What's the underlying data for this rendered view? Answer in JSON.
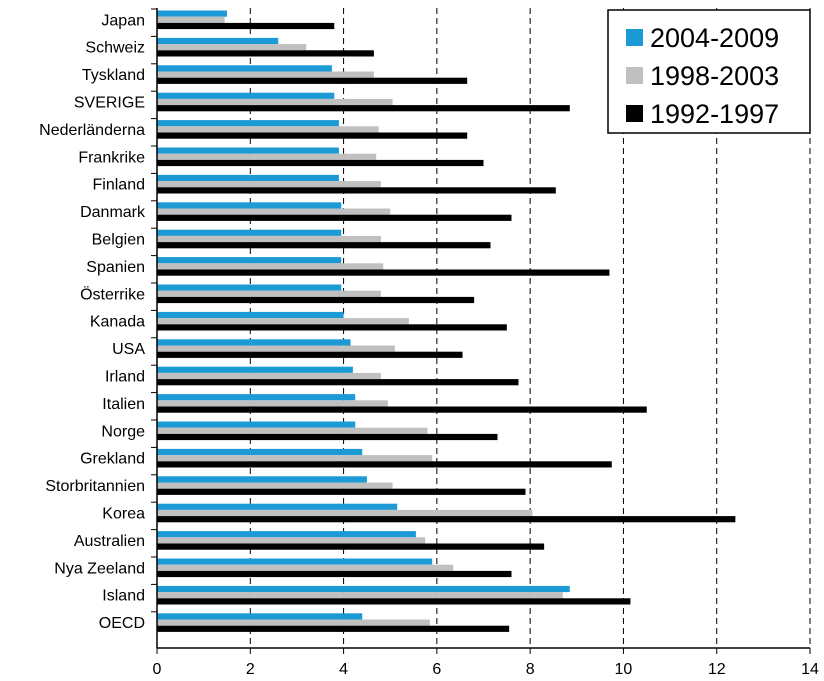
{
  "chart_data": {
    "type": "bar",
    "orientation": "horizontal",
    "categories": [
      "Japan",
      "Schweiz",
      "Tyskland",
      "SVERIGE",
      "Nederländerna",
      "Frankrike",
      "Finland",
      "Danmark",
      "Belgien",
      "Spanien",
      "Österrike",
      "Kanada",
      "USA",
      "Irland",
      "Italien",
      "Norge",
      "Grekland",
      "Storbritannien",
      "Korea",
      "Australien",
      "Nya Zeeland",
      "Island",
      "OECD"
    ],
    "series": [
      {
        "name": "2004-2009",
        "color": "#1b9ad6",
        "values": [
          1.5,
          2.6,
          3.75,
          3.8,
          3.9,
          3.9,
          3.9,
          3.95,
          3.95,
          3.95,
          3.95,
          4.0,
          4.15,
          4.2,
          4.25,
          4.25,
          4.4,
          4.5,
          5.15,
          5.55,
          5.9,
          8.85,
          4.4
        ]
      },
      {
        "name": "1998-2003",
        "color": "#c0c0c0",
        "values": [
          1.45,
          3.2,
          4.65,
          5.05,
          4.75,
          4.7,
          4.8,
          5.0,
          4.8,
          4.85,
          4.8,
          5.4,
          5.1,
          4.8,
          4.95,
          5.8,
          5.9,
          5.05,
          8.05,
          5.75,
          6.35,
          8.7,
          5.85
        ]
      },
      {
        "name": "1992-1997",
        "color": "#000000",
        "values": [
          3.8,
          4.65,
          6.65,
          8.85,
          6.65,
          7.0,
          8.55,
          7.6,
          7.15,
          9.7,
          6.8,
          7.5,
          6.55,
          7.75,
          10.5,
          7.3,
          9.75,
          7.9,
          12.4,
          8.3,
          7.6,
          10.15,
          7.55
        ]
      }
    ],
    "xlim": [
      0,
      14
    ],
    "x_ticks": [
      "0",
      "2",
      "4",
      "6",
      "8",
      "10",
      "12",
      "14"
    ],
    "grid": "vertical-dashed",
    "legend_position": "top-right",
    "title": "",
    "xlabel": "",
    "ylabel": ""
  }
}
